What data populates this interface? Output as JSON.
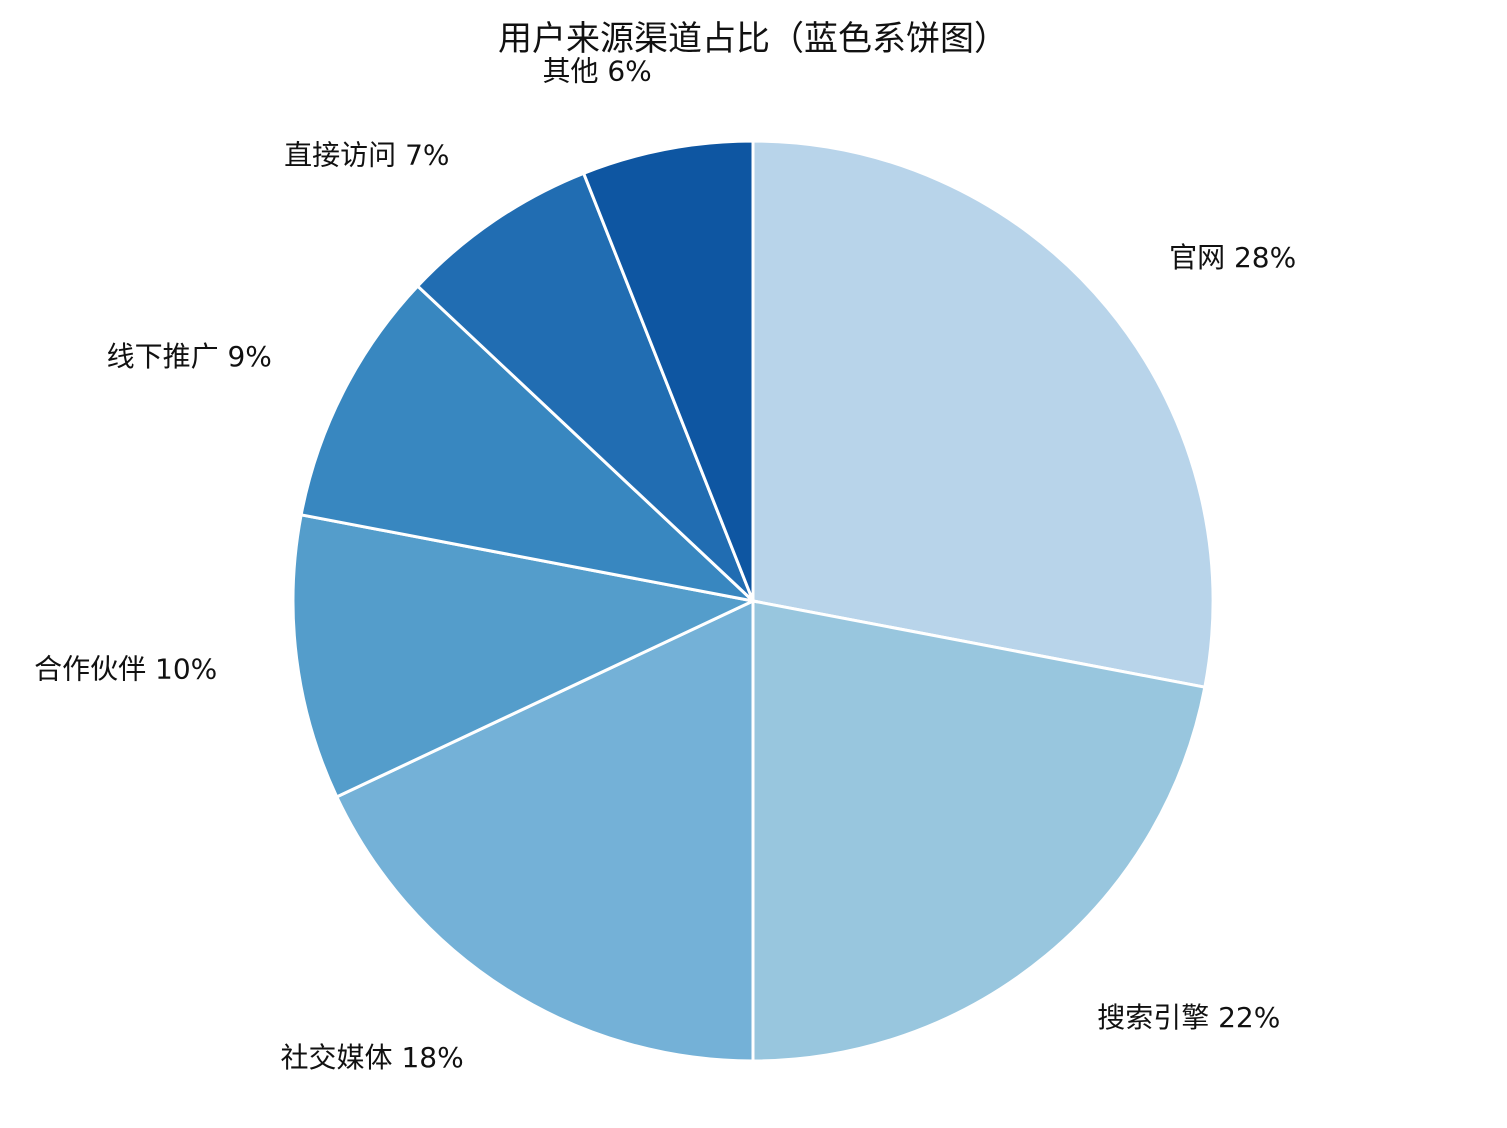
{
  "chart_data": {
    "type": "pie",
    "title": "用户来源渠道占比（蓝色系饼图）",
    "start": "top",
    "direction": "clockwise",
    "slices": [
      {
        "label": "官网",
        "value": 28,
        "display": "官网 28%",
        "color": "#b8d4ea"
      },
      {
        "label": "搜索引擎",
        "value": 22,
        "display": "搜索引擎 22%",
        "color": "#98c6de"
      },
      {
        "label": "社交媒体",
        "value": 18,
        "display": "社交媒体 18%",
        "color": "#74b1d7"
      },
      {
        "label": "合作伙伴",
        "value": 10,
        "display": "合作伙伴 10%",
        "color": "#549dcb"
      },
      {
        "label": "线下推广",
        "value": 9,
        "display": "线下推广 9%",
        "color": "#3887c0"
      },
      {
        "label": "直接访问",
        "value": 7,
        "display": "直接访问 7%",
        "color": "#216db2"
      },
      {
        "label": "其他",
        "value": 6,
        "display": "其他 6%",
        "color": "#0e56a2"
      }
    ]
  }
}
